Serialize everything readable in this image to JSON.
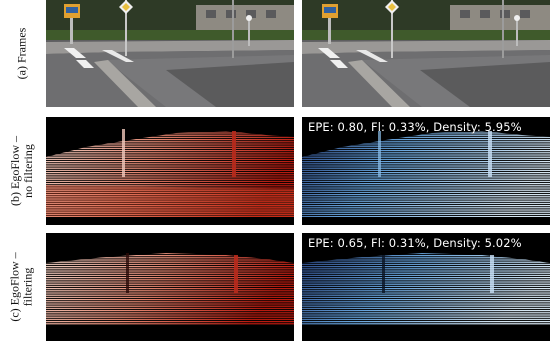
{
  "rows": [
    {
      "label_lines": [
        "(a) Frames"
      ]
    },
    {
      "label_lines": [
        "(b) EgoFlow –",
        "no filtering"
      ]
    },
    {
      "label_lines": [
        "(c) EgoFlow –",
        "filtering"
      ]
    }
  ],
  "captions": {
    "no_filtering": "EPE: 0.80, Fl: 0.33%, Density: 5.95%",
    "filtering": "EPE: 0.65, Fl: 0.31%, Density: 5.02%"
  },
  "colors": {
    "background": "#ffffff",
    "flow_warm": "#e83a2c",
    "flow_cool": "#6aa8e0",
    "asphalt": "#6e6e70",
    "grass": "#3f5a2b",
    "sign_orange": "#e0a030"
  }
}
